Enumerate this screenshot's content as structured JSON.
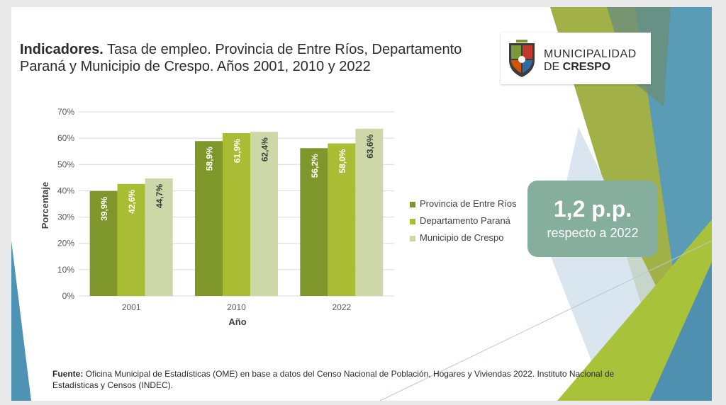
{
  "title": {
    "bold": "Indicadores.",
    "rest": " Tasa de empleo. Provincia de Entre Ríos, Departamento Paraná y Municipio de Crespo. Años 2001, 2010 y 2022"
  },
  "logo": {
    "line1": "MUNICIPALIDAD",
    "line2_prefix": "DE ",
    "line2_bold": "CRESPO"
  },
  "callout": {
    "big": "1,2 p.p.",
    "small": "respecto a 2022"
  },
  "source": {
    "label": "Fuente:",
    "text": " Oficina Municipal de Estadísticas (OME) en base a datos del Censo Nacional de Población, Hogares y Viviendas 2022. Instituto Nacional de Estadísticas y Censos (INDEC)."
  },
  "colors": {
    "series1": "#7f962a",
    "series2": "#a8bd34",
    "series3": "#cdd7a8",
    "callout": "#85ae9c"
  },
  "chart_data": {
    "type": "bar",
    "categories": [
      "2001",
      "2010",
      "2022"
    ],
    "series": [
      {
        "name": "Provincia de Entre Ríos",
        "values": [
          39.9,
          58.9,
          56.2
        ],
        "labels": [
          "39,9%",
          "58,9%",
          "56,2%"
        ]
      },
      {
        "name": "Departamento Paraná",
        "values": [
          42.6,
          61.9,
          58.0
        ],
        "labels": [
          "42,6%",
          "61,9%",
          "58,0%"
        ]
      },
      {
        "name": "Municipio de Crespo",
        "values": [
          44.7,
          62.4,
          63.6
        ],
        "labels": [
          "44,7%",
          "62,4%",
          "63,6%"
        ]
      }
    ],
    "xlabel": "Año",
    "ylabel": "Porcentaje",
    "ylim": [
      0,
      70
    ],
    "yticks": [
      "0%",
      "10%",
      "20%",
      "30%",
      "40%",
      "50%",
      "60%",
      "70%"
    ],
    "grid": true,
    "legend": "right"
  }
}
